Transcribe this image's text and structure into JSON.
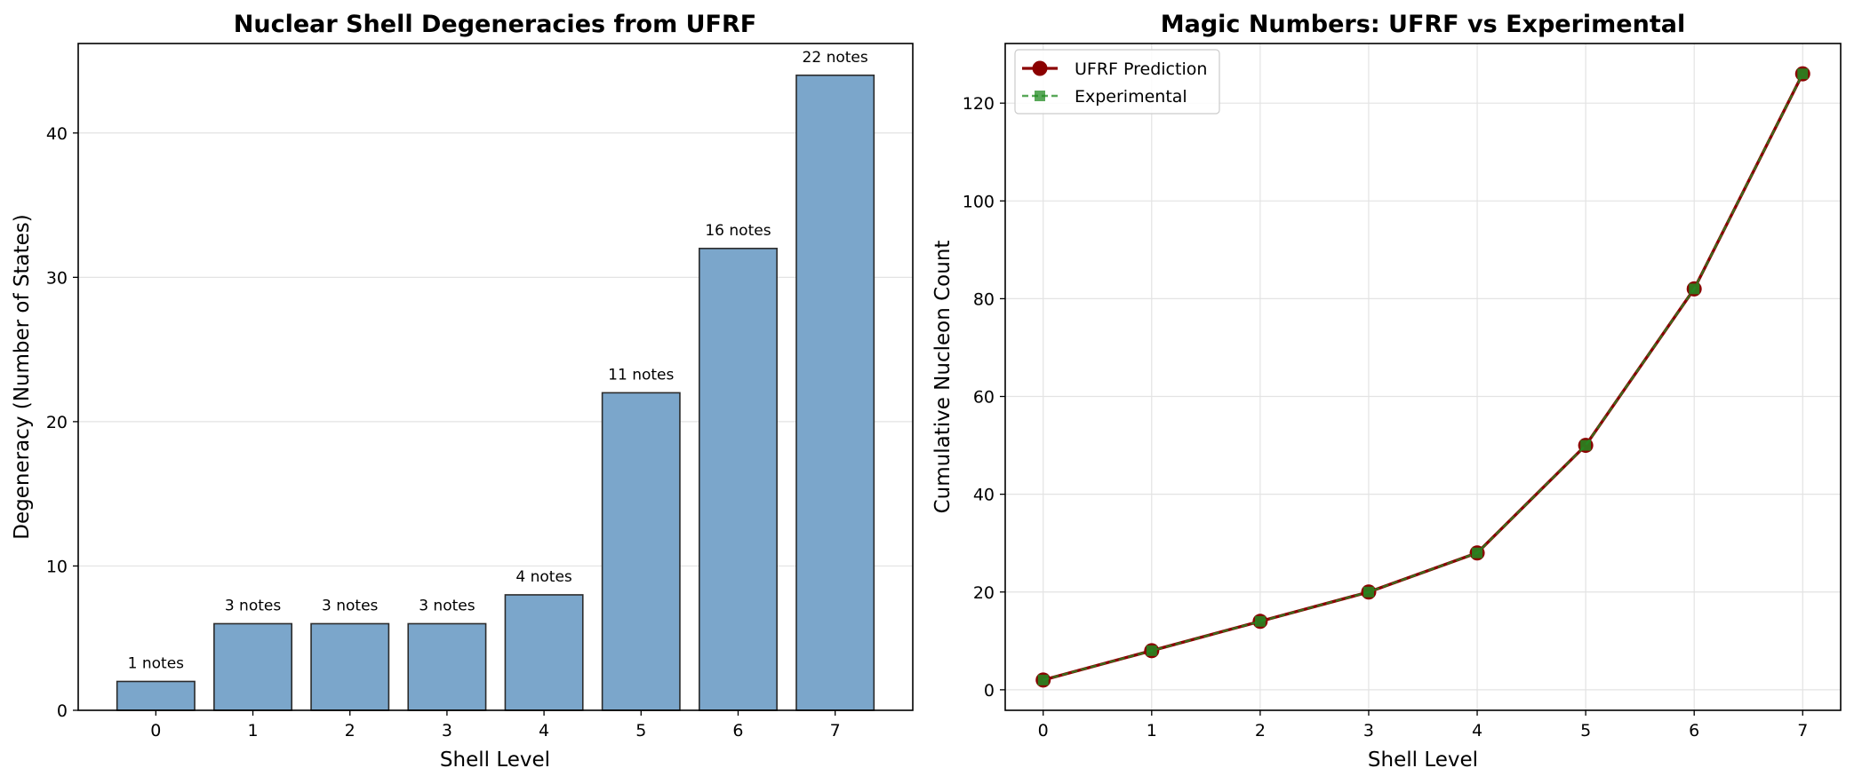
{
  "chart_data": [
    {
      "type": "bar",
      "title": "Nuclear Shell Degeneracies from UFRF",
      "xlabel": "Shell Level",
      "ylabel": "Degeneracy (Number of States)",
      "categories": [
        "0",
        "1",
        "2",
        "3",
        "4",
        "5",
        "6",
        "7"
      ],
      "values": [
        2,
        6,
        6,
        6,
        8,
        22,
        32,
        44
      ],
      "bar_labels": [
        "1 notes",
        "3 notes",
        "3 notes",
        "3 notes",
        "4 notes",
        "11 notes",
        "16 notes",
        "22 notes"
      ],
      "ylim": [
        0,
        46.2
      ],
      "yticks": [
        0,
        10,
        20,
        30,
        40
      ],
      "grid": "y",
      "bar_color": "#7BA6CB",
      "edge_color": "#2b2b2b"
    },
    {
      "type": "line",
      "title": "Magic Numbers: UFRF vs Experimental",
      "xlabel": "Shell Level",
      "ylabel": "Cumulative Nucleon Count",
      "x": [
        0,
        1,
        2,
        3,
        4,
        5,
        6,
        7
      ],
      "xlim": [
        -0.35,
        7.35
      ],
      "ylim": [
        -4.2,
        132.2
      ],
      "xticks": [
        0,
        1,
        2,
        3,
        4,
        5,
        6,
        7
      ],
      "yticks": [
        0,
        20,
        40,
        60,
        80,
        100,
        120
      ],
      "grid": "both",
      "legend_position": "top-left",
      "series": [
        {
          "name": "UFRF Prediction",
          "values": [
            2,
            8,
            14,
            20,
            28,
            50,
            82,
            126
          ],
          "color": "#8B0000",
          "marker": "circle",
          "linestyle": "solid"
        },
        {
          "name": "Experimental",
          "values": [
            2,
            8,
            14,
            20,
            28,
            50,
            82,
            126
          ],
          "color": "#228B22",
          "marker": "square",
          "linestyle": "dashed"
        }
      ]
    }
  ]
}
